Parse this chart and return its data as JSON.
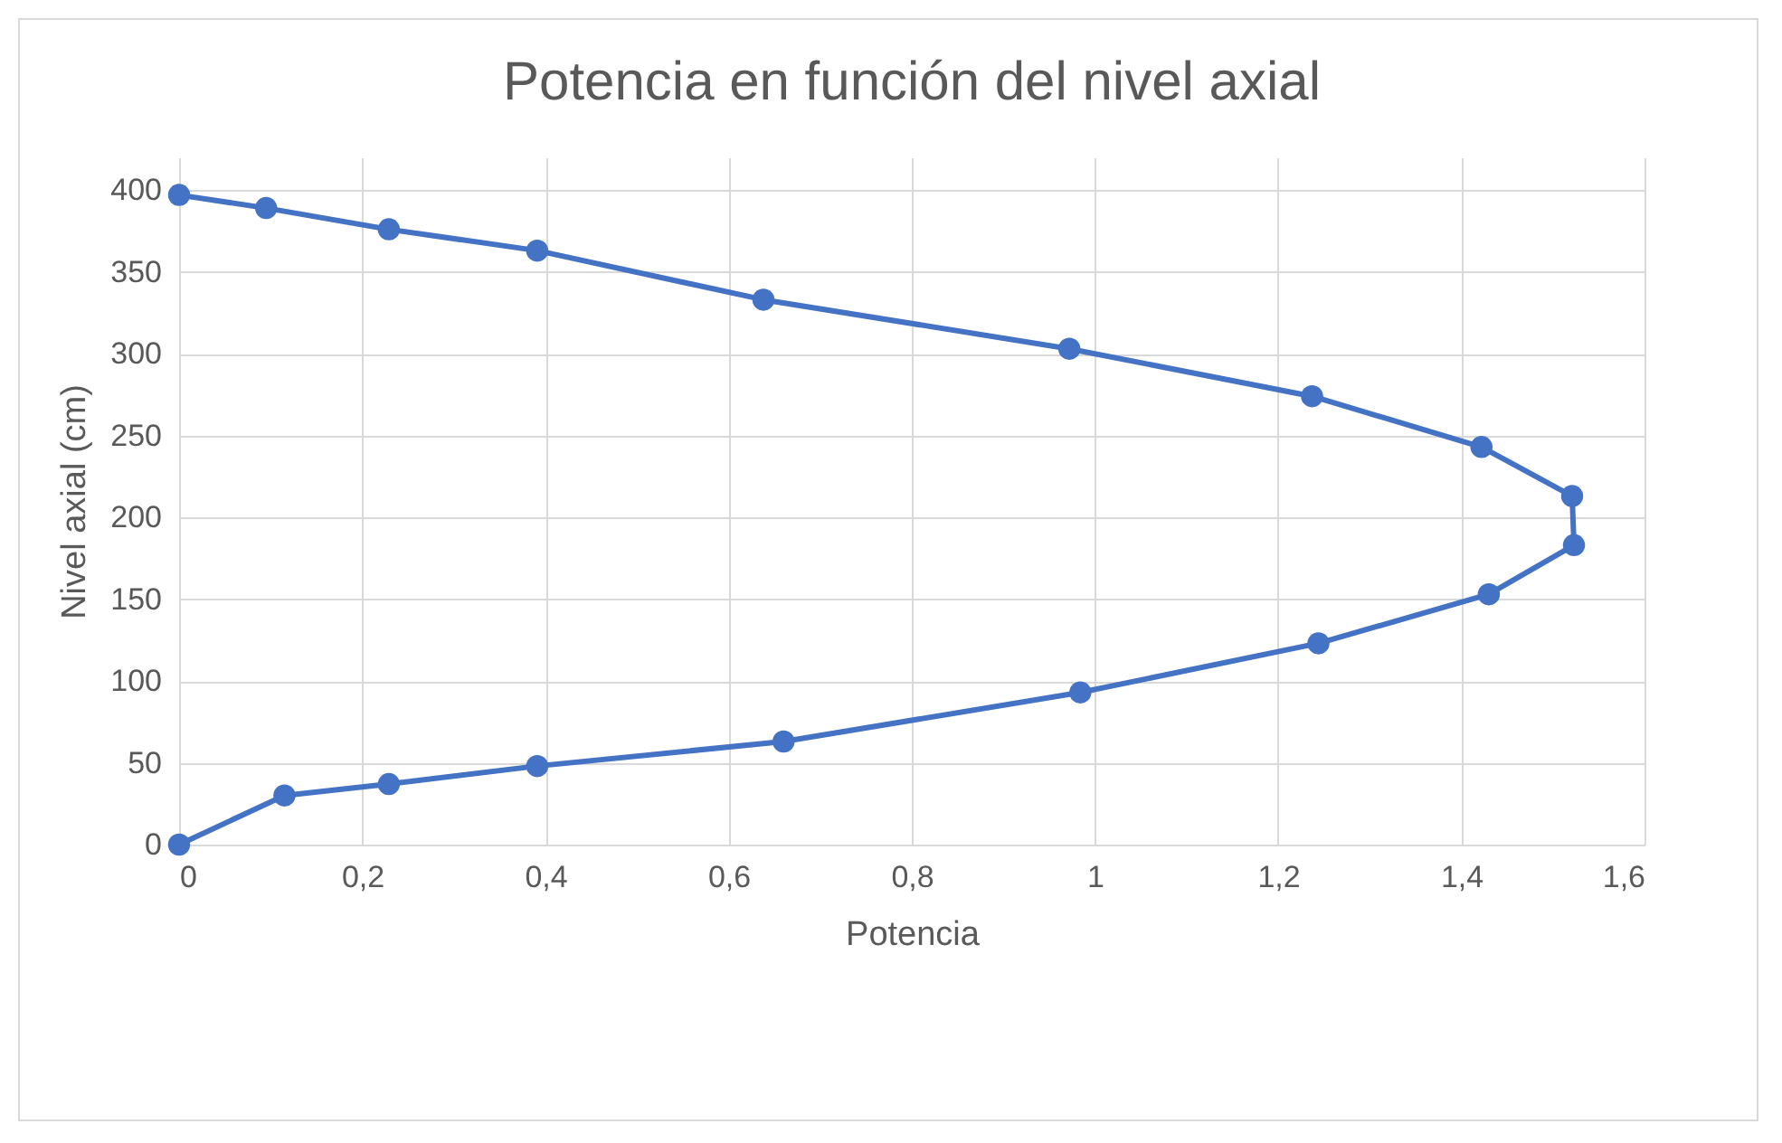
{
  "chart_data": {
    "type": "line",
    "title": "Potencia en función del nivel axial",
    "xlabel": "Potencia",
    "ylabel": "Nivel axial (cm)",
    "x": [
      0,
      0.115,
      0.229,
      0.391,
      0.66,
      0.984,
      1.244,
      1.43,
      1.523,
      1.521,
      1.422,
      1.237,
      0.972,
      0.638,
      0.391,
      0.229,
      0.095,
      0
    ],
    "series": [
      {
        "color": "#4472c4",
        "values": [
          0,
          30,
          37,
          48,
          63,
          93,
          123,
          153,
          183,
          213,
          243,
          274,
          303,
          333,
          363,
          376,
          389,
          397
        ]
      }
    ],
    "xlim": [
      0,
      1.6
    ],
    "ylim": [
      0,
      420
    ],
    "xticks": [
      0,
      {
        "value": 0.2,
        "label": "0,2"
      },
      {
        "value": 0.4,
        "label": "0,4"
      },
      {
        "value": 0.6,
        "label": "0,6"
      },
      {
        "value": 0.8,
        "label": "0,8"
      },
      1,
      {
        "value": 1.2,
        "label": "1,2"
      },
      {
        "value": 1.4,
        "label": "1,4"
      },
      {
        "value": 1.6,
        "label": "1,6"
      }
    ],
    "yticks": [
      0,
      50,
      100,
      150,
      200,
      250,
      300,
      350,
      400
    ],
    "grid": true,
    "marker": "circle",
    "line_style": "solid"
  }
}
